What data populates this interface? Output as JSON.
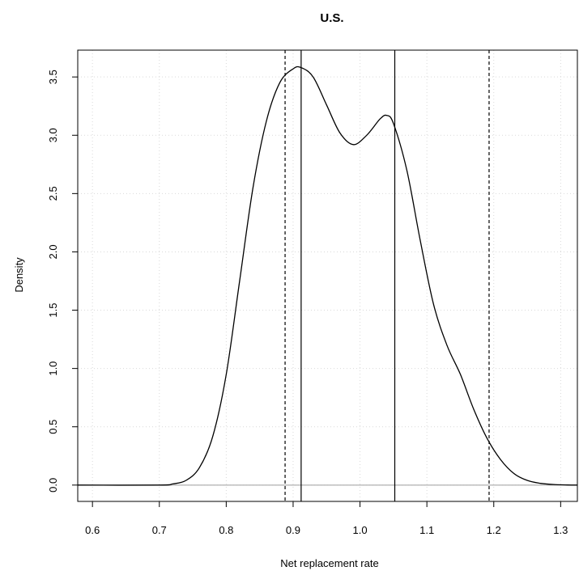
{
  "chart_data": {
    "type": "line",
    "title": "U.S.",
    "xlabel": "Net replacement rate",
    "ylabel": "Density",
    "xlim": [
      0.578,
      1.325
    ],
    "ylim": [
      -0.14,
      3.73
    ],
    "grid": true,
    "x_ticks": [
      0.6,
      0.7,
      0.8,
      0.9,
      1.0,
      1.1,
      1.2,
      1.3
    ],
    "x_tick_labels": [
      "0.6",
      "0.7",
      "0.8",
      "0.9",
      "1.0",
      "1.1",
      "1.2",
      "1.3"
    ],
    "y_ticks": [
      0.0,
      0.5,
      1.0,
      1.5,
      2.0,
      2.5,
      3.0,
      3.5
    ],
    "y_tick_labels": [
      "0.0",
      "0.5",
      "1.0",
      "1.5",
      "2.0",
      "2.5",
      "3.0",
      "3.5"
    ],
    "series": [
      {
        "type": "density",
        "color": "#000000",
        "x": [
          0.578,
          0.7,
          0.72,
          0.74,
          0.76,
          0.78,
          0.8,
          0.82,
          0.84,
          0.86,
          0.88,
          0.9,
          0.912,
          0.93,
          0.95,
          0.97,
          0.99,
          1.01,
          1.03,
          1.04,
          1.05,
          1.07,
          1.09,
          1.11,
          1.13,
          1.15,
          1.17,
          1.19,
          1.21,
          1.23,
          1.25,
          1.27,
          1.29,
          1.31,
          1.325
        ],
        "y": [
          0.0,
          0.0,
          0.01,
          0.04,
          0.15,
          0.42,
          0.95,
          1.75,
          2.55,
          3.12,
          3.45,
          3.57,
          3.58,
          3.5,
          3.26,
          3.02,
          2.92,
          3.0,
          3.14,
          3.17,
          3.1,
          2.7,
          2.1,
          1.55,
          1.2,
          0.95,
          0.65,
          0.4,
          0.22,
          0.1,
          0.04,
          0.015,
          0.005,
          0.001,
          0.0
        ]
      }
    ],
    "vlines": [
      {
        "x": 0.888,
        "style": "dashed"
      },
      {
        "x": 0.912,
        "style": "solid"
      },
      {
        "x": 1.052,
        "style": "solid"
      },
      {
        "x": 1.193,
        "style": "dashed"
      }
    ],
    "hline": {
      "y": 0.0,
      "color": "#9e9e9e"
    }
  }
}
